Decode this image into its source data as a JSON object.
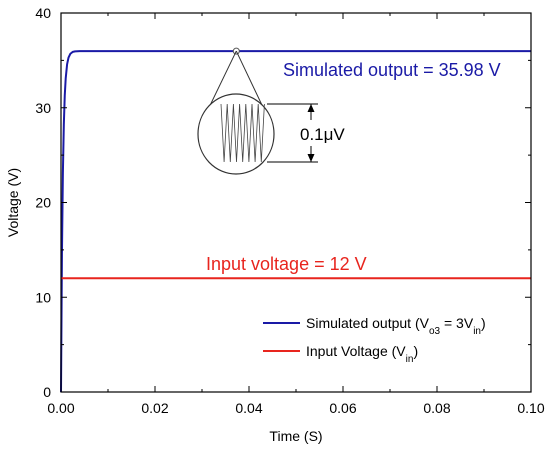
{
  "chart_data": {
    "type": "line",
    "title": "",
    "xlabel": "Time (S)",
    "ylabel": "Voltage (V)",
    "xlim": [
      0.0,
      0.1
    ],
    "ylim": [
      0,
      40
    ],
    "xticks": [
      0.0,
      0.02,
      0.04,
      0.06,
      0.08,
      0.1
    ],
    "xtick_labels": [
      "0.00",
      "0.02",
      "0.04",
      "0.06",
      "0.08",
      "0.10"
    ],
    "yticks": [
      0,
      10,
      20,
      30,
      40
    ],
    "ytick_labels": [
      "0",
      "10",
      "20",
      "30",
      "40"
    ],
    "grid": false,
    "legend_position": "bottom-right",
    "series": [
      {
        "name": "Simulated output (V_o3 = 3V_in)",
        "legend_parts": {
          "pre": "Simulated output (V",
          "sub1": "o3",
          "mid": " = 3V",
          "sub2": "in",
          "post": ")"
        },
        "color": "#1a1aa6",
        "x": [
          0,
          0.0002,
          0.0004,
          0.0006,
          0.0008,
          0.001,
          0.0013,
          0.0016,
          0.002,
          0.0025,
          0.003,
          0.004,
          0.005,
          0.01,
          0.02,
          0.04,
          0.06,
          0.08,
          0.1
        ],
        "y": [
          0,
          14.5,
          23.1,
          28.2,
          31.3,
          33.1,
          34.6,
          35.3,
          35.7,
          35.9,
          35.95,
          35.98,
          35.98,
          35.98,
          35.98,
          35.98,
          35.98,
          35.98,
          35.98
        ]
      },
      {
        "name": "Input Voltage (V_in)",
        "legend_parts": {
          "pre": "Input Voltage (V",
          "sub1": "in",
          "post": ")"
        },
        "color": "#e8251e",
        "x": [
          0,
          0.1
        ],
        "y": [
          12,
          12
        ]
      }
    ],
    "annotations": {
      "output_label": "Simulated output = 35.98 V",
      "input_label": "Input voltage = 12 V",
      "zoom_label": "0.1μV",
      "zoom_point": [
        0.0373,
        35.98
      ]
    }
  }
}
